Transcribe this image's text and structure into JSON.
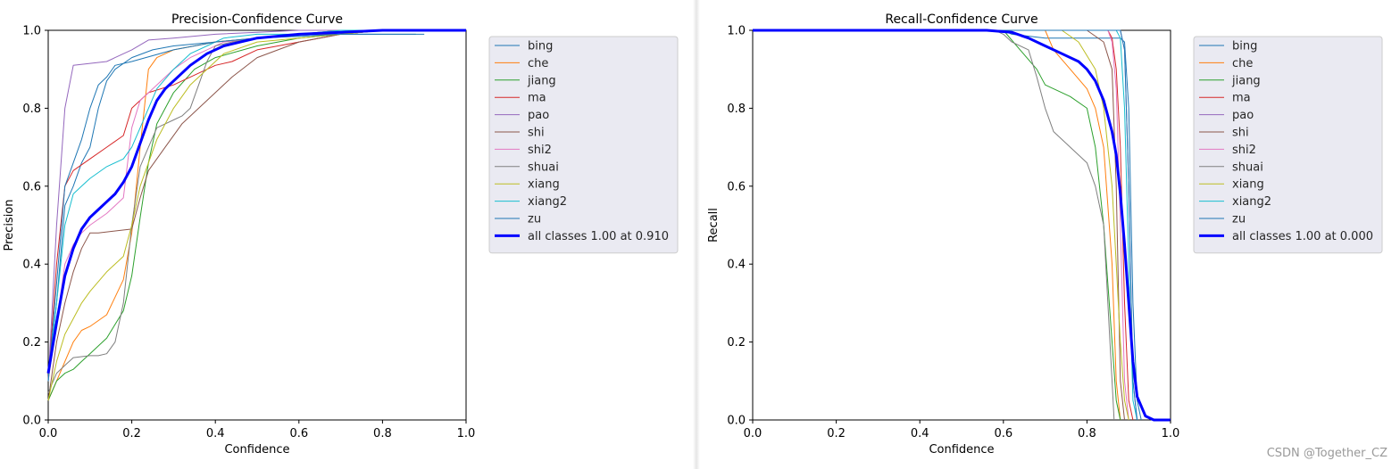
{
  "watermark": "CSDN @Together_CZ",
  "colors": [
    "#1f77b4",
    "#ff7f0e",
    "#2ca02c",
    "#d62728",
    "#9467bd",
    "#8c564b",
    "#e377c2",
    "#7f7f7f",
    "#bcbd22",
    "#17becf",
    "#1f77b4"
  ],
  "all_color": "#0000ff",
  "chart_data": [
    {
      "type": "line",
      "title": "Precision-Confidence Curve",
      "xlabel": "Confidence",
      "ylabel": "Precision",
      "xlim": [
        0,
        1
      ],
      "ylim": [
        0,
        1
      ],
      "xticks": [
        "0.0",
        "0.2",
        "0.4",
        "0.6",
        "0.8",
        "1.0"
      ],
      "yticks": [
        "0.0",
        "0.2",
        "0.4",
        "0.6",
        "0.8",
        "1.0"
      ],
      "grid": false,
      "legend": "outside-right",
      "series": [
        {
          "name": "bing",
          "x": [
            0,
            0.02,
            0.04,
            0.06,
            0.08,
            0.1,
            0.12,
            0.14,
            0.16,
            0.2,
            0.25,
            0.3,
            0.4,
            0.5,
            0.6,
            0.7,
            0.8,
            0.9
          ],
          "y": [
            0.1,
            0.3,
            0.55,
            0.6,
            0.66,
            0.7,
            0.8,
            0.87,
            0.9,
            0.93,
            0.95,
            0.96,
            0.97,
            0.98,
            0.985,
            0.99,
            0.99,
            0.99
          ]
        },
        {
          "name": "che",
          "x": [
            0,
            0.02,
            0.04,
            0.06,
            0.08,
            0.1,
            0.14,
            0.18,
            0.2,
            0.22,
            0.24,
            0.26,
            0.3,
            0.35,
            0.4,
            0.5,
            0.6,
            0.7,
            0.8,
            0.9,
            1.0
          ],
          "y": [
            0.05,
            0.1,
            0.15,
            0.2,
            0.23,
            0.24,
            0.27,
            0.36,
            0.48,
            0.7,
            0.9,
            0.93,
            0.95,
            0.96,
            0.97,
            0.98,
            0.99,
            0.99,
            1.0,
            1.0,
            1.0
          ]
        },
        {
          "name": "jiang",
          "x": [
            0,
            0.02,
            0.04,
            0.06,
            0.08,
            0.1,
            0.14,
            0.18,
            0.2,
            0.22,
            0.24,
            0.26,
            0.3,
            0.35,
            0.4,
            0.5,
            0.6,
            0.7,
            0.8,
            0.9,
            1.0
          ],
          "y": [
            0.05,
            0.1,
            0.12,
            0.13,
            0.15,
            0.17,
            0.21,
            0.28,
            0.37,
            0.52,
            0.66,
            0.76,
            0.84,
            0.9,
            0.93,
            0.96,
            0.98,
            0.99,
            1.0,
            1.0,
            1.0
          ]
        },
        {
          "name": "ma",
          "x": [
            0,
            0.02,
            0.04,
            0.06,
            0.1,
            0.14,
            0.18,
            0.2,
            0.24,
            0.3,
            0.36,
            0.4,
            0.44,
            0.5,
            0.6,
            0.7,
            0.8,
            0.9,
            1.0
          ],
          "y": [
            0.1,
            0.4,
            0.6,
            0.64,
            0.67,
            0.7,
            0.73,
            0.8,
            0.84,
            0.86,
            0.89,
            0.91,
            0.92,
            0.95,
            0.97,
            0.99,
            1.0,
            1.0,
            1.0
          ]
        },
        {
          "name": "pao",
          "x": [
            0,
            0.02,
            0.04,
            0.06,
            0.1,
            0.14,
            0.16,
            0.2,
            0.24,
            0.3,
            0.4,
            0.5,
            0.6,
            0.7,
            0.8,
            0.9,
            1.0
          ],
          "y": [
            0.1,
            0.5,
            0.8,
            0.91,
            0.915,
            0.92,
            0.93,
            0.95,
            0.975,
            0.98,
            0.99,
            0.995,
            1.0,
            1.0,
            1.0,
            1.0,
            1.0
          ]
        },
        {
          "name": "shi",
          "x": [
            0,
            0.02,
            0.04,
            0.06,
            0.08,
            0.1,
            0.12,
            0.2,
            0.22,
            0.24,
            0.28,
            0.32,
            0.36,
            0.4,
            0.44,
            0.5,
            0.6,
            0.7,
            0.8,
            0.9,
            1.0
          ],
          "y": [
            0.05,
            0.2,
            0.3,
            0.38,
            0.44,
            0.48,
            0.48,
            0.49,
            0.57,
            0.64,
            0.7,
            0.76,
            0.8,
            0.84,
            0.88,
            0.93,
            0.97,
            0.99,
            1.0,
            1.0,
            1.0
          ]
        },
        {
          "name": "shi2",
          "x": [
            0,
            0.02,
            0.04,
            0.06,
            0.08,
            0.1,
            0.14,
            0.18,
            0.2,
            0.22,
            0.26,
            0.3,
            0.34,
            0.38,
            0.42,
            0.5,
            0.6,
            0.7,
            0.8,
            0.9,
            1.0
          ],
          "y": [
            0.1,
            0.25,
            0.4,
            0.45,
            0.48,
            0.5,
            0.53,
            0.57,
            0.75,
            0.82,
            0.86,
            0.9,
            0.93,
            0.95,
            0.97,
            0.98,
            0.99,
            1.0,
            1.0,
            1.0,
            1.0
          ]
        },
        {
          "name": "shuai",
          "x": [
            0,
            0.02,
            0.04,
            0.06,
            0.1,
            0.12,
            0.14,
            0.16,
            0.18,
            0.2,
            0.22,
            0.24,
            0.26,
            0.3,
            0.32,
            0.34,
            0.36,
            0.38,
            0.4,
            0.44,
            0.5,
            0.6,
            0.7,
            0.8,
            0.9,
            1.0
          ],
          "y": [
            0.07,
            0.12,
            0.14,
            0.16,
            0.165,
            0.165,
            0.17,
            0.2,
            0.3,
            0.5,
            0.65,
            0.7,
            0.75,
            0.77,
            0.78,
            0.8,
            0.86,
            0.92,
            0.96,
            0.97,
            0.98,
            0.99,
            1.0,
            1.0,
            1.0,
            1.0
          ]
        },
        {
          "name": "xiang",
          "x": [
            0,
            0.02,
            0.04,
            0.06,
            0.08,
            0.1,
            0.14,
            0.18,
            0.2,
            0.22,
            0.24,
            0.26,
            0.3,
            0.34,
            0.38,
            0.42,
            0.5,
            0.6,
            0.7,
            0.8,
            0.9,
            1.0
          ],
          "y": [
            0.05,
            0.15,
            0.22,
            0.26,
            0.3,
            0.33,
            0.38,
            0.42,
            0.5,
            0.6,
            0.66,
            0.72,
            0.8,
            0.86,
            0.9,
            0.94,
            0.97,
            0.98,
            0.99,
            1.0,
            1.0,
            1.0
          ]
        },
        {
          "name": "xiang2",
          "x": [
            0,
            0.02,
            0.04,
            0.06,
            0.08,
            0.1,
            0.14,
            0.18,
            0.2,
            0.22,
            0.26,
            0.3,
            0.34,
            0.38,
            0.42,
            0.5,
            0.6,
            0.7,
            0.8,
            0.9,
            1.0
          ],
          "y": [
            0.1,
            0.3,
            0.5,
            0.58,
            0.6,
            0.62,
            0.65,
            0.67,
            0.7,
            0.75,
            0.85,
            0.9,
            0.94,
            0.96,
            0.98,
            0.99,
            0.99,
            1.0,
            1.0,
            1.0,
            1.0
          ]
        },
        {
          "name": "zu",
          "x": [
            0,
            0.02,
            0.04,
            0.06,
            0.08,
            0.1,
            0.12,
            0.14,
            0.16,
            0.2,
            0.3,
            0.4,
            0.5,
            0.6,
            0.7,
            0.8,
            0.88
          ],
          "y": [
            0.1,
            0.35,
            0.6,
            0.66,
            0.72,
            0.8,
            0.86,
            0.88,
            0.91,
            0.92,
            0.95,
            0.97,
            0.98,
            0.985,
            0.99,
            0.99,
            0.99
          ]
        },
        {
          "name": "all classes 1.00 at 0.910",
          "bold": true,
          "x": [
            0,
            0.02,
            0.04,
            0.06,
            0.08,
            0.1,
            0.12,
            0.14,
            0.16,
            0.18,
            0.2,
            0.22,
            0.24,
            0.26,
            0.28,
            0.3,
            0.34,
            0.38,
            0.42,
            0.46,
            0.5,
            0.6,
            0.7,
            0.8,
            0.9,
            1.0
          ],
          "y": [
            0.12,
            0.25,
            0.37,
            0.44,
            0.49,
            0.52,
            0.54,
            0.56,
            0.58,
            0.61,
            0.65,
            0.71,
            0.77,
            0.82,
            0.85,
            0.87,
            0.91,
            0.94,
            0.96,
            0.97,
            0.98,
            0.99,
            0.995,
            1.0,
            1.0,
            1.0
          ]
        }
      ]
    },
    {
      "type": "line",
      "title": "Recall-Confidence Curve",
      "xlabel": "Confidence",
      "ylabel": "Recall",
      "xlim": [
        0,
        1
      ],
      "ylim": [
        0,
        1
      ],
      "xticks": [
        "0.0",
        "0.2",
        "0.4",
        "0.6",
        "0.8",
        "1.0"
      ],
      "yticks": [
        "0.0",
        "0.2",
        "0.4",
        "0.6",
        "0.8",
        "1.0"
      ],
      "grid": false,
      "legend": "outside-right",
      "series": [
        {
          "name": "bing",
          "x": [
            0,
            0.6,
            0.62,
            0.7,
            0.8,
            0.88,
            0.89,
            0.9,
            0.91,
            0.92,
            0.93
          ],
          "y": [
            1.0,
            1.0,
            0.99,
            0.98,
            0.98,
            0.98,
            0.97,
            0.8,
            0.3,
            0.05,
            0.0
          ]
        },
        {
          "name": "che",
          "x": [
            0,
            0.7,
            0.72,
            0.76,
            0.8,
            0.82,
            0.84,
            0.86,
            0.87,
            0.88
          ],
          "y": [
            1.0,
            1.0,
            0.95,
            0.9,
            0.85,
            0.8,
            0.7,
            0.4,
            0.1,
            0.0
          ]
        },
        {
          "name": "jiang",
          "x": [
            0,
            0.6,
            0.64,
            0.68,
            0.7,
            0.72,
            0.76,
            0.8,
            0.82,
            0.84,
            0.86,
            0.87,
            0.88
          ],
          "y": [
            1.0,
            1.0,
            0.95,
            0.9,
            0.86,
            0.85,
            0.83,
            0.8,
            0.7,
            0.5,
            0.2,
            0.05,
            0.0
          ]
        },
        {
          "name": "ma",
          "x": [
            0,
            0.85,
            0.86,
            0.87,
            0.88,
            0.89,
            0.9,
            0.91
          ],
          "y": [
            1.0,
            1.0,
            0.98,
            0.9,
            0.7,
            0.3,
            0.05,
            0.0
          ]
        },
        {
          "name": "pao",
          "x": [
            0,
            0.88,
            0.89,
            0.9,
            0.91,
            0.92
          ],
          "y": [
            1.0,
            1.0,
            0.95,
            0.6,
            0.1,
            0.0
          ]
        },
        {
          "name": "shi",
          "x": [
            0,
            0.8,
            0.84,
            0.86,
            0.87,
            0.88,
            0.89
          ],
          "y": [
            1.0,
            1.0,
            0.97,
            0.9,
            0.6,
            0.1,
            0.0
          ]
        },
        {
          "name": "shi2",
          "x": [
            0,
            0.85,
            0.86,
            0.87,
            0.88,
            0.89,
            0.9
          ],
          "y": [
            1.0,
            1.0,
            0.97,
            0.85,
            0.5,
            0.1,
            0.0
          ]
        },
        {
          "name": "shuai",
          "x": [
            0,
            0.58,
            0.6,
            0.62,
            0.66,
            0.68,
            0.7,
            0.72,
            0.76,
            0.8,
            0.82,
            0.84,
            0.85,
            0.86,
            0.865
          ],
          "y": [
            1.0,
            1.0,
            0.99,
            0.97,
            0.95,
            0.88,
            0.8,
            0.74,
            0.7,
            0.66,
            0.6,
            0.5,
            0.3,
            0.1,
            0.0
          ]
        },
        {
          "name": "xiang",
          "x": [
            0,
            0.74,
            0.78,
            0.82,
            0.84,
            0.86,
            0.87,
            0.88,
            0.89,
            0.9
          ],
          "y": [
            1.0,
            1.0,
            0.97,
            0.9,
            0.8,
            0.6,
            0.4,
            0.2,
            0.05,
            0.0
          ]
        },
        {
          "name": "xiang2",
          "x": [
            0,
            0.87,
            0.88,
            0.89,
            0.9,
            0.91,
            0.92
          ],
          "y": [
            1.0,
            1.0,
            0.98,
            0.8,
            0.4,
            0.05,
            0.0
          ]
        },
        {
          "name": "zu",
          "x": [
            0,
            0.88,
            0.89,
            0.9,
            0.91,
            0.92
          ],
          "y": [
            1.0,
            1.0,
            0.95,
            0.6,
            0.1,
            0.0
          ]
        },
        {
          "name": "all classes 1.00 at 0.000",
          "bold": true,
          "x": [
            0,
            0.56,
            0.62,
            0.66,
            0.7,
            0.74,
            0.78,
            0.8,
            0.82,
            0.84,
            0.86,
            0.87,
            0.88,
            0.89,
            0.9,
            0.91,
            0.92,
            0.94,
            0.96,
            1.0
          ],
          "y": [
            1.0,
            1.0,
            0.995,
            0.98,
            0.96,
            0.94,
            0.92,
            0.9,
            0.87,
            0.82,
            0.74,
            0.68,
            0.58,
            0.45,
            0.3,
            0.15,
            0.06,
            0.01,
            0.0,
            0.0
          ]
        }
      ]
    }
  ]
}
